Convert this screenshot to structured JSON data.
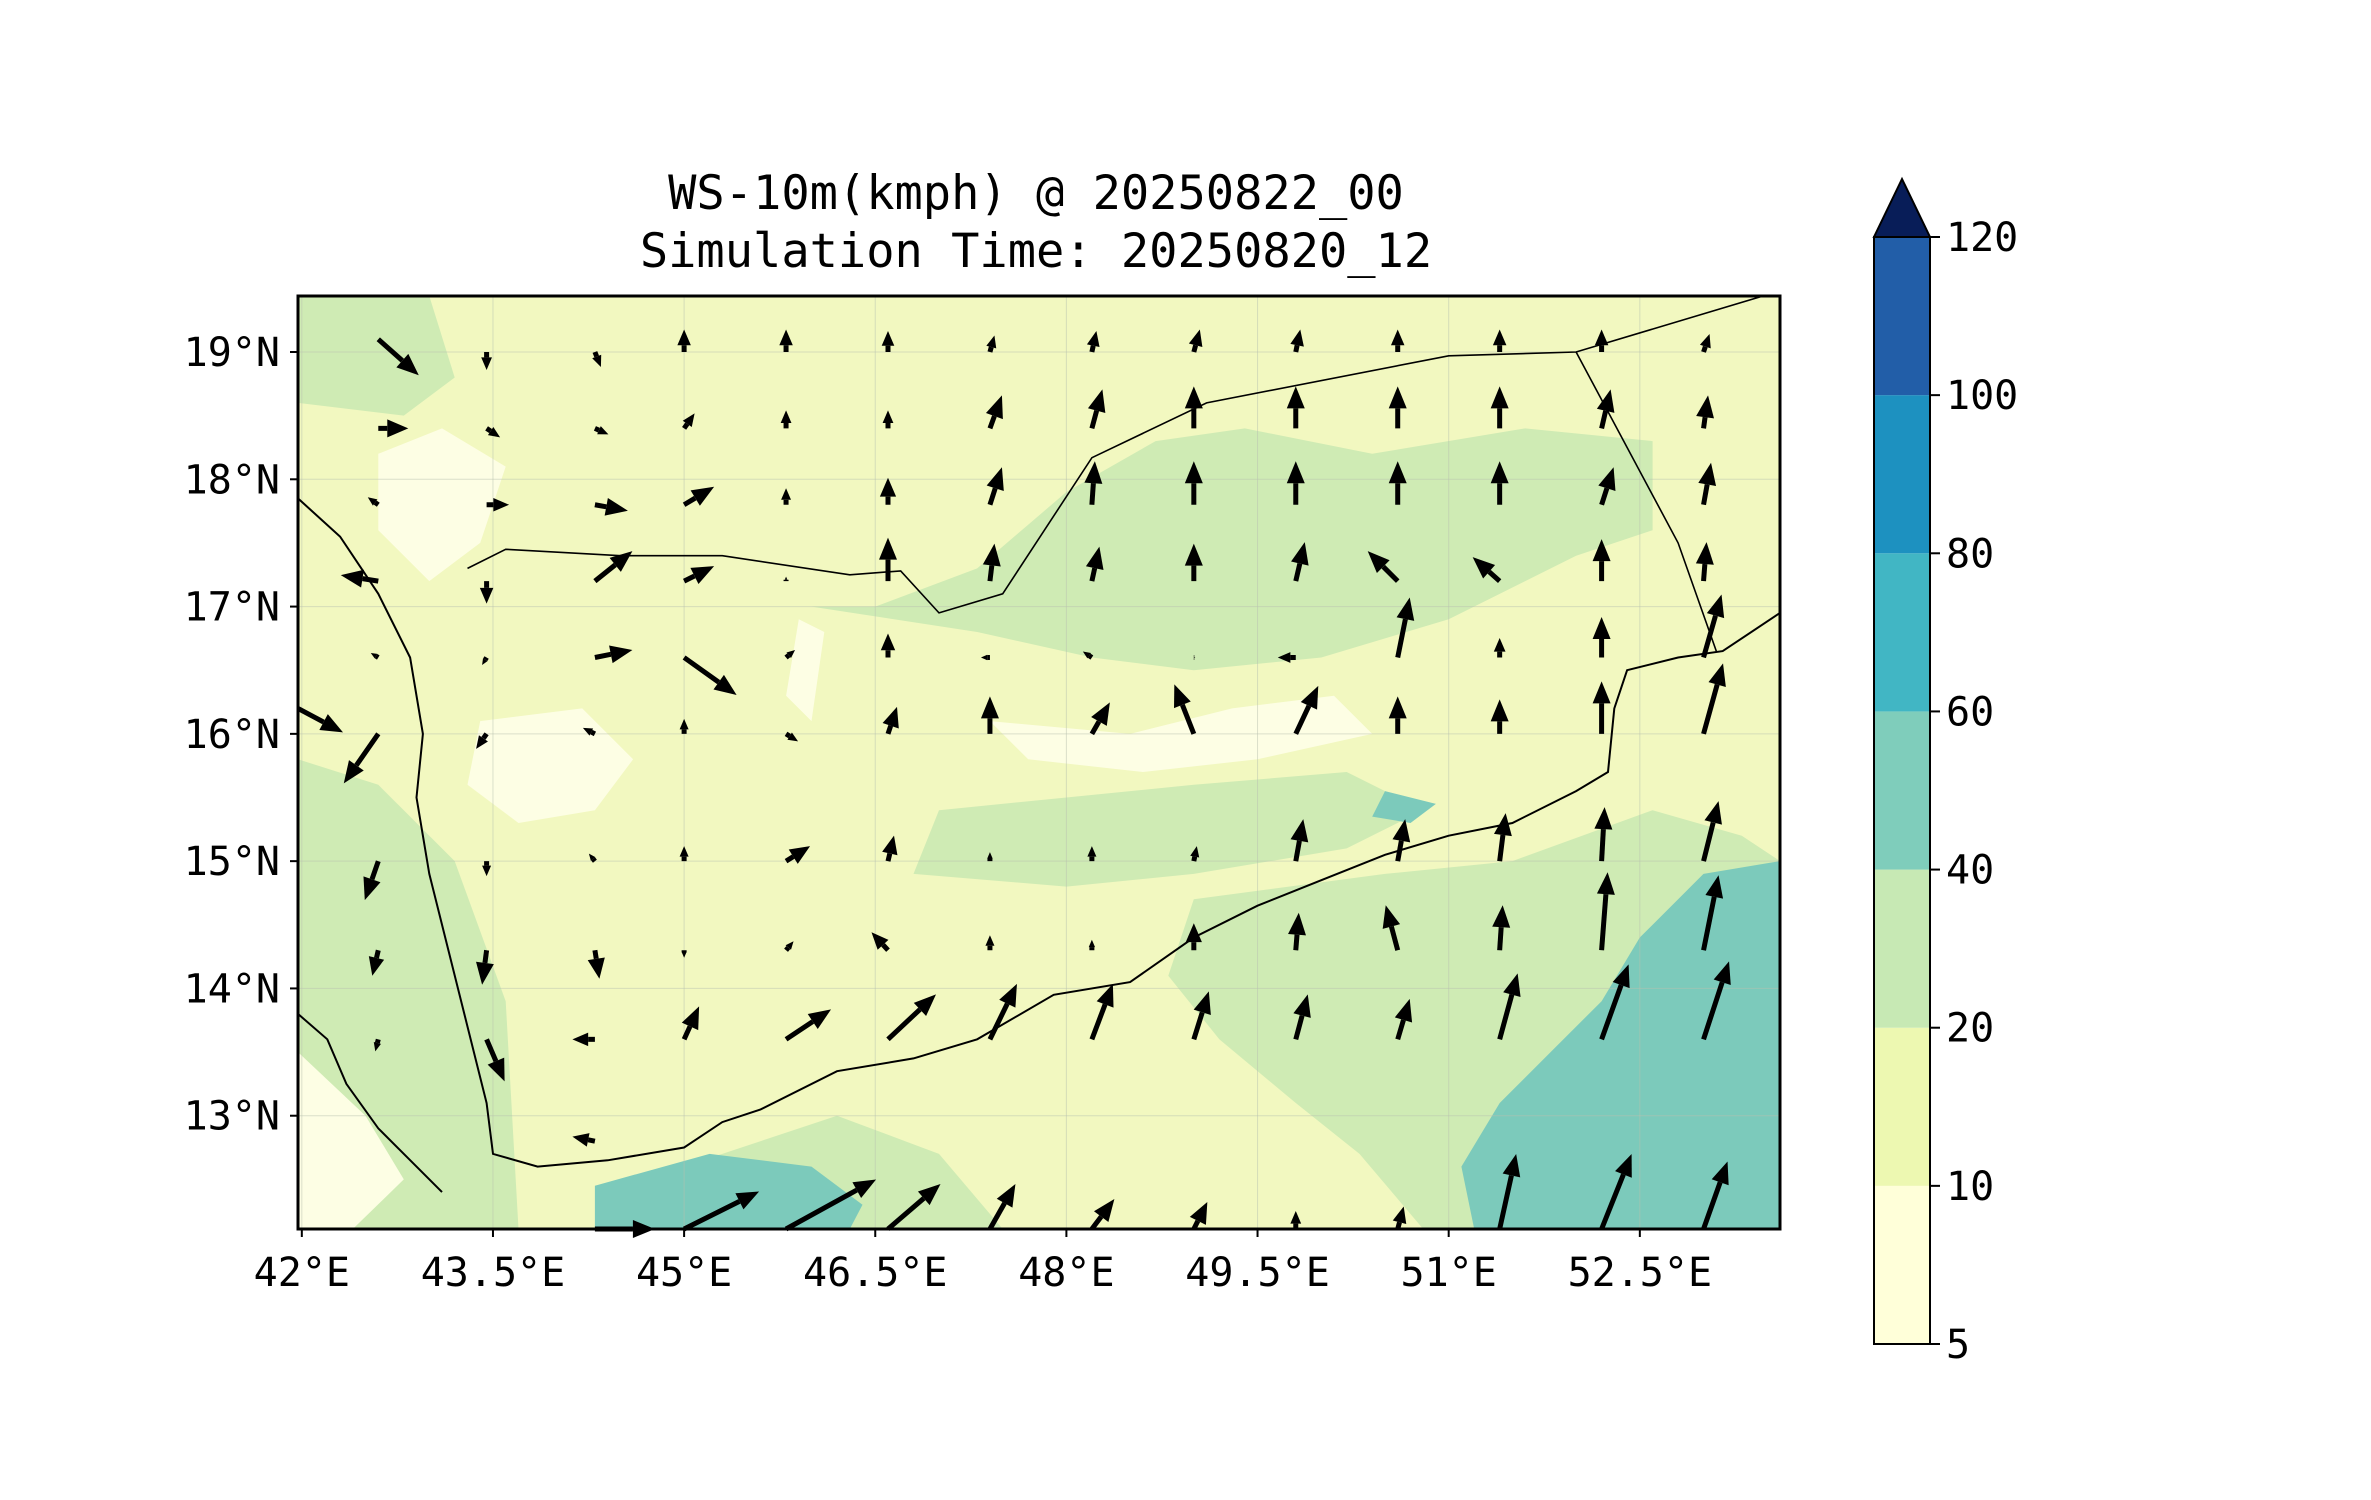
{
  "title": {
    "line1": "WS-10m(kmph) @ 20250822_00",
    "line2": "Simulation Time: 20250820_12"
  },
  "map": {
    "lon_range": [
      41.97,
      53.6
    ],
    "lat_range": [
      12.11,
      19.44
    ],
    "lon_ticks": [
      {
        "value": 42.0,
        "label": "42°E"
      },
      {
        "value": 43.5,
        "label": "43.5°E"
      },
      {
        "value": 45.0,
        "label": "45°E"
      },
      {
        "value": 46.5,
        "label": "46.5°E"
      },
      {
        "value": 48.0,
        "label": "48°E"
      },
      {
        "value": 49.5,
        "label": "49.5°E"
      },
      {
        "value": 51.0,
        "label": "51°E"
      },
      {
        "value": 52.5,
        "label": "52.5°E"
      }
    ],
    "lat_ticks": [
      {
        "value": 19,
        "label": "19°N"
      },
      {
        "value": 18,
        "label": "18°N"
      },
      {
        "value": 17,
        "label": "17°N"
      },
      {
        "value": 16,
        "label": "16°N"
      },
      {
        "value": 15,
        "label": "15°N"
      },
      {
        "value": 14,
        "label": "14°N"
      },
      {
        "value": 13,
        "label": "13°N"
      }
    ],
    "grid": true,
    "background_color": "#f2f8c0"
  },
  "colorbar": {
    "levels": [
      {
        "label": "5",
        "value": 5,
        "color": "#ffffd9"
      },
      {
        "label": "10",
        "value": 10,
        "color": "#edf8b1"
      },
      {
        "label": "20",
        "value": 20,
        "color": "#c7e9b4"
      },
      {
        "label": "40",
        "value": 40,
        "color": "#7fcdbb"
      },
      {
        "label": "60",
        "value": 60,
        "color": "#41b6c4"
      },
      {
        "label": "80",
        "value": 80,
        "color": "#1d91c0"
      },
      {
        "label": "100",
        "value": 100,
        "color": "#225ea8"
      },
      {
        "label": "120",
        "value": 120,
        "color": "#253494"
      }
    ],
    "extend_color": "#081d58",
    "extend": "max"
  },
  "shading_regions": [
    {
      "level": "20-40",
      "color": "#cfebb4",
      "points": [
        [
          46.0,
          17.0
        ],
        [
          47.3,
          16.8
        ],
        [
          48.2,
          16.6
        ],
        [
          49.0,
          16.5
        ],
        [
          50.0,
          16.6
        ],
        [
          51.0,
          16.9
        ],
        [
          52.0,
          17.4
        ],
        [
          52.6,
          17.6
        ],
        [
          52.6,
          18.3
        ],
        [
          51.6,
          18.4
        ],
        [
          50.4,
          18.2
        ],
        [
          49.4,
          18.4
        ],
        [
          48.7,
          18.3
        ],
        [
          48.0,
          17.9
        ],
        [
          47.3,
          17.3
        ],
        [
          46.5,
          17.0
        ]
      ]
    },
    {
      "level": "20-40",
      "color": "#cfebb4",
      "points": [
        [
          46.8,
          14.9
        ],
        [
          48.0,
          14.8
        ],
        [
          49.0,
          14.9
        ],
        [
          50.2,
          15.1
        ],
        [
          50.8,
          15.4
        ],
        [
          50.2,
          15.7
        ],
        [
          49.0,
          15.6
        ],
        [
          48.0,
          15.5
        ],
        [
          47.0,
          15.4
        ]
      ]
    },
    {
      "level": "20-40",
      "color": "#cfebb4",
      "points": [
        [
          49.0,
          14.7
        ],
        [
          50.5,
          14.9
        ],
        [
          51.5,
          15.0
        ],
        [
          52.6,
          15.4
        ],
        [
          53.3,
          15.2
        ],
        [
          53.6,
          15.0
        ],
        [
          53.6,
          12.11
        ],
        [
          50.8,
          12.11
        ],
        [
          50.3,
          12.7
        ],
        [
          49.8,
          13.1
        ],
        [
          49.2,
          13.6
        ],
        [
          48.8,
          14.1
        ]
      ]
    },
    {
      "level": "20-40",
      "color": "#cfebb4",
      "points": [
        [
          44.3,
          12.11
        ],
        [
          47.5,
          12.11
        ],
        [
          47.0,
          12.7
        ],
        [
          46.2,
          13.0
        ],
        [
          45.3,
          12.7
        ],
        [
          44.6,
          12.5
        ]
      ]
    },
    {
      "level": "20-40",
      "color": "#cfebb4",
      "points": [
        [
          41.97,
          15.8
        ],
        [
          42.6,
          15.6
        ],
        [
          43.2,
          15.0
        ],
        [
          43.6,
          13.9
        ],
        [
          43.7,
          12.11
        ],
        [
          41.97,
          12.11
        ]
      ]
    },
    {
      "level": "20-40",
      "color": "#cfebb4",
      "points": [
        [
          41.97,
          19.44
        ],
        [
          43.0,
          19.44
        ],
        [
          43.2,
          18.8
        ],
        [
          42.8,
          18.5
        ],
        [
          41.97,
          18.6
        ]
      ]
    },
    {
      "level": "40-60",
      "color": "#7ccabb",
      "points": [
        [
          52.5,
          14.4
        ],
        [
          53.0,
          14.9
        ],
        [
          53.6,
          15.0
        ],
        [
          53.6,
          12.11
        ],
        [
          51.2,
          12.11
        ],
        [
          51.1,
          12.6
        ],
        [
          51.4,
          13.1
        ],
        [
          51.8,
          13.5
        ],
        [
          52.2,
          13.9
        ]
      ]
    },
    {
      "level": "40-60",
      "color": "#7ccabb",
      "points": [
        [
          44.3,
          12.45
        ],
        [
          45.2,
          12.7
        ],
        [
          46.0,
          12.6
        ],
        [
          46.4,
          12.3
        ],
        [
          46.3,
          12.11
        ],
        [
          44.3,
          12.11
        ]
      ]
    },
    {
      "level": "40-60",
      "color": "#7ccabb",
      "points": [
        [
          50.5,
          15.55
        ],
        [
          50.9,
          15.45
        ],
        [
          50.7,
          15.3
        ],
        [
          50.4,
          15.35
        ]
      ]
    },
    {
      "level": "5-10",
      "color": "#fdfee4",
      "points": [
        [
          43.1,
          18.4
        ],
        [
          43.6,
          18.1
        ],
        [
          43.4,
          17.5
        ],
        [
          43.0,
          17.2
        ],
        [
          42.6,
          17.6
        ],
        [
          42.6,
          18.2
        ]
      ]
    },
    {
      "level": "5-10",
      "color": "#fdfee4",
      "points": [
        [
          47.4,
          16.1
        ],
        [
          48.5,
          16.0
        ],
        [
          49.3,
          16.2
        ],
        [
          50.1,
          16.3
        ],
        [
          50.4,
          16.0
        ],
        [
          49.5,
          15.8
        ],
        [
          48.6,
          15.7
        ],
        [
          47.7,
          15.8
        ]
      ]
    },
    {
      "level": "5-10",
      "color": "#fdfee4",
      "points": [
        [
          41.97,
          13.5
        ],
        [
          42.5,
          13.0
        ],
        [
          42.8,
          12.5
        ],
        [
          42.4,
          12.11
        ],
        [
          41.97,
          12.11
        ]
      ]
    },
    {
      "level": "5-10",
      "color": "#fdfee4",
      "points": [
        [
          43.4,
          16.1
        ],
        [
          44.2,
          16.2
        ],
        [
          44.6,
          15.8
        ],
        [
          44.3,
          15.4
        ],
        [
          43.7,
          15.3
        ],
        [
          43.3,
          15.6
        ]
      ]
    },
    {
      "level": "5-10",
      "color": "#fdfee4",
      "points": [
        [
          45.9,
          16.9
        ],
        [
          46.1,
          16.8
        ],
        [
          46.0,
          16.1
        ],
        [
          45.8,
          16.3
        ]
      ]
    }
  ],
  "boundaries": [
    {
      "kind": "coast",
      "points": [
        [
          41.97,
          17.85
        ],
        [
          42.3,
          17.55
        ],
        [
          42.6,
          17.1
        ],
        [
          42.85,
          16.6
        ],
        [
          42.95,
          16.0
        ],
        [
          42.9,
          15.5
        ],
        [
          43.0,
          14.9
        ],
        [
          43.15,
          14.3
        ],
        [
          43.3,
          13.7
        ],
        [
          43.45,
          13.1
        ],
        [
          43.5,
          12.7
        ],
        [
          43.85,
          12.6
        ],
        [
          44.4,
          12.65
        ],
        [
          45.0,
          12.75
        ],
        [
          45.3,
          12.95
        ],
        [
          45.6,
          13.05
        ],
        [
          46.2,
          13.35
        ],
        [
          46.8,
          13.45
        ],
        [
          47.3,
          13.6
        ],
        [
          47.9,
          13.95
        ],
        [
          48.5,
          14.05
        ],
        [
          49.0,
          14.4
        ],
        [
          49.5,
          14.65
        ],
        [
          50.0,
          14.85
        ],
        [
          50.5,
          15.05
        ],
        [
          51.0,
          15.2
        ],
        [
          51.5,
          15.3
        ],
        [
          52.0,
          15.55
        ],
        [
          52.25,
          15.7
        ],
        [
          52.3,
          16.2
        ],
        [
          52.4,
          16.5
        ],
        [
          52.8,
          16.6
        ],
        [
          53.15,
          16.65
        ],
        [
          53.6,
          16.95
        ]
      ]
    },
    {
      "kind": "coast",
      "points": [
        [
          41.97,
          13.8
        ],
        [
          42.2,
          13.6
        ],
        [
          42.35,
          13.25
        ],
        [
          42.6,
          12.9
        ],
        [
          42.9,
          12.6
        ],
        [
          43.1,
          12.4
        ]
      ]
    },
    {
      "kind": "border",
      "points": [
        [
          43.3,
          17.3
        ],
        [
          43.6,
          17.45
        ],
        [
          44.5,
          17.4
        ],
        [
          45.3,
          17.4
        ],
        [
          46.3,
          17.25
        ],
        [
          46.7,
          17.28
        ],
        [
          47.0,
          16.95
        ],
        [
          47.5,
          17.1
        ],
        [
          48.2,
          18.17
        ],
        [
          49.1,
          18.6
        ],
        [
          51.0,
          18.97
        ],
        [
          52.0,
          19.0
        ],
        [
          53.6,
          19.48
        ]
      ]
    },
    {
      "kind": "border",
      "points": [
        [
          52.0,
          19.0
        ],
        [
          52.8,
          17.5
        ],
        [
          53.1,
          16.65
        ]
      ]
    }
  ],
  "wind_vectors": [
    [
      42.6,
      19.1,
      2.7,
      -2.4
    ],
    [
      43.45,
      19.0,
      0,
      -1.2
    ],
    [
      44.3,
      19.0,
      0.4,
      -1.0
    ],
    [
      45.0,
      19.0,
      0,
      1.5
    ],
    [
      45.8,
      19.0,
      0,
      1.5
    ],
    [
      46.6,
      19.0,
      0,
      1.4
    ],
    [
      47.4,
      19.0,
      0.3,
      1.1
    ],
    [
      48.2,
      19.0,
      0.3,
      1.4
    ],
    [
      49.0,
      19.0,
      0.4,
      1.5
    ],
    [
      49.8,
      19.0,
      0.3,
      1.5
    ],
    [
      50.6,
      19.0,
      0,
      1.5
    ],
    [
      51.4,
      19.0,
      0,
      1.5
    ],
    [
      52.2,
      19.0,
      0,
      1.5
    ],
    [
      53.0,
      19.0,
      0.4,
      1.2
    ],
    [
      42.6,
      18.4,
      2.0,
      0
    ],
    [
      43.45,
      18.4,
      0.9,
      -0.6
    ],
    [
      44.3,
      18.4,
      0.9,
      -0.4
    ],
    [
      45.0,
      18.4,
      0.7,
      1.0
    ],
    [
      45.8,
      18.4,
      0,
      1.2
    ],
    [
      46.6,
      18.4,
      0,
      1.2
    ],
    [
      47.4,
      18.4,
      0.8,
      2.2
    ],
    [
      48.2,
      18.4,
      0.7,
      2.6
    ],
    [
      49.0,
      18.4,
      0,
      2.8
    ],
    [
      49.8,
      18.4,
      0,
      2.8
    ],
    [
      50.6,
      18.4,
      0,
      2.8
    ],
    [
      51.4,
      18.4,
      0,
      2.8
    ],
    [
      52.2,
      18.4,
      0.6,
      2.6
    ],
    [
      53.0,
      18.4,
      0.3,
      2.2
    ],
    [
      42.6,
      17.8,
      -0.7,
      0.5
    ],
    [
      43.45,
      17.8,
      1.5,
      0
    ],
    [
      44.3,
      17.8,
      2.2,
      -0.4
    ],
    [
      45.0,
      17.8,
      2.0,
      1.2
    ],
    [
      45.8,
      17.8,
      0,
      1.1
    ],
    [
      46.6,
      17.8,
      0,
      1.8
    ],
    [
      47.4,
      17.8,
      0.8,
      2.5
    ],
    [
      48.2,
      17.8,
      0.2,
      2.9
    ],
    [
      49.0,
      17.8,
      0,
      2.9
    ],
    [
      49.8,
      17.8,
      0,
      2.9
    ],
    [
      50.6,
      17.8,
      0,
      2.9
    ],
    [
      51.4,
      17.8,
      0,
      2.9
    ],
    [
      52.2,
      17.8,
      0.8,
      2.5
    ],
    [
      53.0,
      17.8,
      0.5,
      2.8
    ],
    [
      42.6,
      17.2,
      -2.5,
      0.4
    ],
    [
      43.45,
      17.2,
      0,
      -1.5
    ],
    [
      44.3,
      17.2,
      2.5,
      2.0
    ],
    [
      45.0,
      17.2,
      2.0,
      1.0
    ],
    [
      45.8,
      17.2,
      0,
      0.3
    ],
    [
      46.6,
      17.2,
      0,
      2.9
    ],
    [
      47.4,
      17.2,
      0.3,
      2.5
    ],
    [
      48.2,
      17.2,
      0.5,
      2.3
    ],
    [
      49.0,
      17.2,
      0,
      2.5
    ],
    [
      49.8,
      17.2,
      0.6,
      2.6
    ],
    [
      50.6,
      17.2,
      -2.0,
      2.0
    ],
    [
      51.4,
      17.2,
      -1.8,
      1.6
    ],
    [
      52.2,
      17.2,
      0,
      2.8
    ],
    [
      53.0,
      17.2,
      0.2,
      2.6
    ],
    [
      42.6,
      16.6,
      -0.5,
      0.3
    ],
    [
      43.45,
      16.6,
      -0.3,
      -0.5
    ],
    [
      44.3,
      16.6,
      2.5,
      0.5
    ],
    [
      45.0,
      16.6,
      3.5,
      -2.5
    ],
    [
      45.8,
      16.6,
      0.6,
      0.5
    ],
    [
      46.6,
      16.6,
      0,
      1.6
    ],
    [
      47.4,
      16.6,
      -0.6,
      0
    ],
    [
      48.2,
      16.6,
      -0.6,
      0.4
    ],
    [
      49.0,
      16.6,
      0.1,
      0
    ],
    [
      49.8,
      16.6,
      -1.2,
      0
    ],
    [
      50.6,
      16.6,
      0.8,
      4.0
    ],
    [
      51.4,
      16.6,
      0,
      1.3
    ],
    [
      52.2,
      16.6,
      0,
      2.7
    ],
    [
      53.0,
      16.6,
      1.2,
      4.2
    ],
    [
      41.97,
      16.2,
      3.0,
      -1.6
    ],
    [
      42.6,
      16.0,
      -2.3,
      -3.3
    ],
    [
      43.45,
      16.0,
      -0.7,
      -1.0
    ],
    [
      44.3,
      16.0,
      -0.8,
      0.4
    ],
    [
      45.0,
      16.0,
      0,
      1.0
    ],
    [
      45.8,
      16.0,
      0.8,
      -0.5
    ],
    [
      46.6,
      16.0,
      0.6,
      1.8
    ],
    [
      47.4,
      16.0,
      0,
      2.5
    ],
    [
      48.2,
      16.0,
      1.2,
      2.1
    ],
    [
      49.0,
      16.0,
      -1.3,
      3.3
    ],
    [
      49.8,
      16.0,
      1.5,
      3.2
    ],
    [
      50.6,
      16.0,
      0,
      2.5
    ],
    [
      51.4,
      16.0,
      0,
      2.3
    ],
    [
      52.2,
      16.0,
      0,
      3.5
    ],
    [
      53.0,
      16.0,
      1.3,
      4.7
    ],
    [
      42.6,
      15.0,
      -0.9,
      -2.6
    ],
    [
      43.45,
      15.0,
      0,
      -1.0
    ],
    [
      44.3,
      15.0,
      -0.4,
      0.5
    ],
    [
      45.0,
      15.0,
      0,
      1.0
    ],
    [
      45.8,
      15.0,
      1.6,
      1.0
    ],
    [
      46.6,
      15.0,
      0.4,
      1.7
    ],
    [
      47.4,
      15.0,
      0,
      0.6
    ],
    [
      48.2,
      15.0,
      0,
      1.0
    ],
    [
      49.0,
      15.0,
      0.2,
      1.0
    ],
    [
      49.8,
      15.0,
      0.5,
      2.8
    ],
    [
      50.6,
      15.0,
      0.5,
      2.8
    ],
    [
      51.4,
      15.0,
      0.4,
      3.2
    ],
    [
      52.2,
      15.0,
      0.2,
      3.6
    ],
    [
      53.0,
      15.0,
      1.0,
      4.0
    ],
    [
      42.6,
      14.3,
      -0.4,
      -1.7
    ],
    [
      43.45,
      14.3,
      -0.3,
      -2.3
    ],
    [
      44.3,
      14.3,
      0.3,
      -1.9
    ],
    [
      45.0,
      14.3,
      0,
      -0.5
    ],
    [
      45.8,
      14.3,
      0.5,
      0.6
    ],
    [
      46.6,
      14.3,
      -1.1,
      1.2
    ],
    [
      47.4,
      14.3,
      0,
      1.0
    ],
    [
      48.2,
      14.3,
      0,
      0.7
    ],
    [
      49.0,
      14.3,
      0,
      1.8
    ],
    [
      49.8,
      14.3,
      0.2,
      2.5
    ],
    [
      50.6,
      14.3,
      -0.8,
      3.0
    ],
    [
      51.4,
      14.3,
      0.2,
      3.0
    ],
    [
      52.2,
      14.3,
      0.4,
      5.2
    ],
    [
      53.0,
      14.3,
      1.0,
      5.0
    ],
    [
      42.6,
      13.6,
      -0.2,
      -0.8
    ],
    [
      43.45,
      13.6,
      1.2,
      -2.8
    ],
    [
      44.3,
      13.6,
      -1.5,
      0
    ],
    [
      45.0,
      13.6,
      1.0,
      2.2
    ],
    [
      45.8,
      13.6,
      3.0,
      2.0
    ],
    [
      46.6,
      13.6,
      3.2,
      3.0
    ],
    [
      47.4,
      13.6,
      1.8,
      3.7
    ],
    [
      48.2,
      13.6,
      1.4,
      3.7
    ],
    [
      49.0,
      13.6,
      1.0,
      3.2
    ],
    [
      49.8,
      13.6,
      0.8,
      3.0
    ],
    [
      50.6,
      13.6,
      0.8,
      2.7
    ],
    [
      51.4,
      13.6,
      1.2,
      4.4
    ],
    [
      52.2,
      13.6,
      1.8,
      5.0
    ],
    [
      53.0,
      13.6,
      1.7,
      5.2
    ],
    [
      44.3,
      12.8,
      -1.5,
      0.3
    ],
    [
      44.3,
      12.11,
      4.0,
      0
    ],
    [
      45.0,
      12.11,
      5.0,
      2.5
    ],
    [
      45.8,
      12.11,
      6.0,
      3.3
    ],
    [
      46.6,
      12.11,
      3.5,
      3.0
    ],
    [
      47.4,
      12.11,
      1.7,
      3.0
    ],
    [
      48.2,
      12.11,
      1.5,
      2.0
    ],
    [
      49.0,
      12.11,
      0.9,
      1.8
    ],
    [
      49.8,
      12.11,
      0,
      1.2
    ],
    [
      50.6,
      12.11,
      0.4,
      1.5
    ],
    [
      51.4,
      12.11,
      1.1,
      5.0
    ],
    [
      52.2,
      12.11,
      2.0,
      5.0
    ],
    [
      53.0,
      12.11,
      1.6,
      4.5
    ]
  ]
}
